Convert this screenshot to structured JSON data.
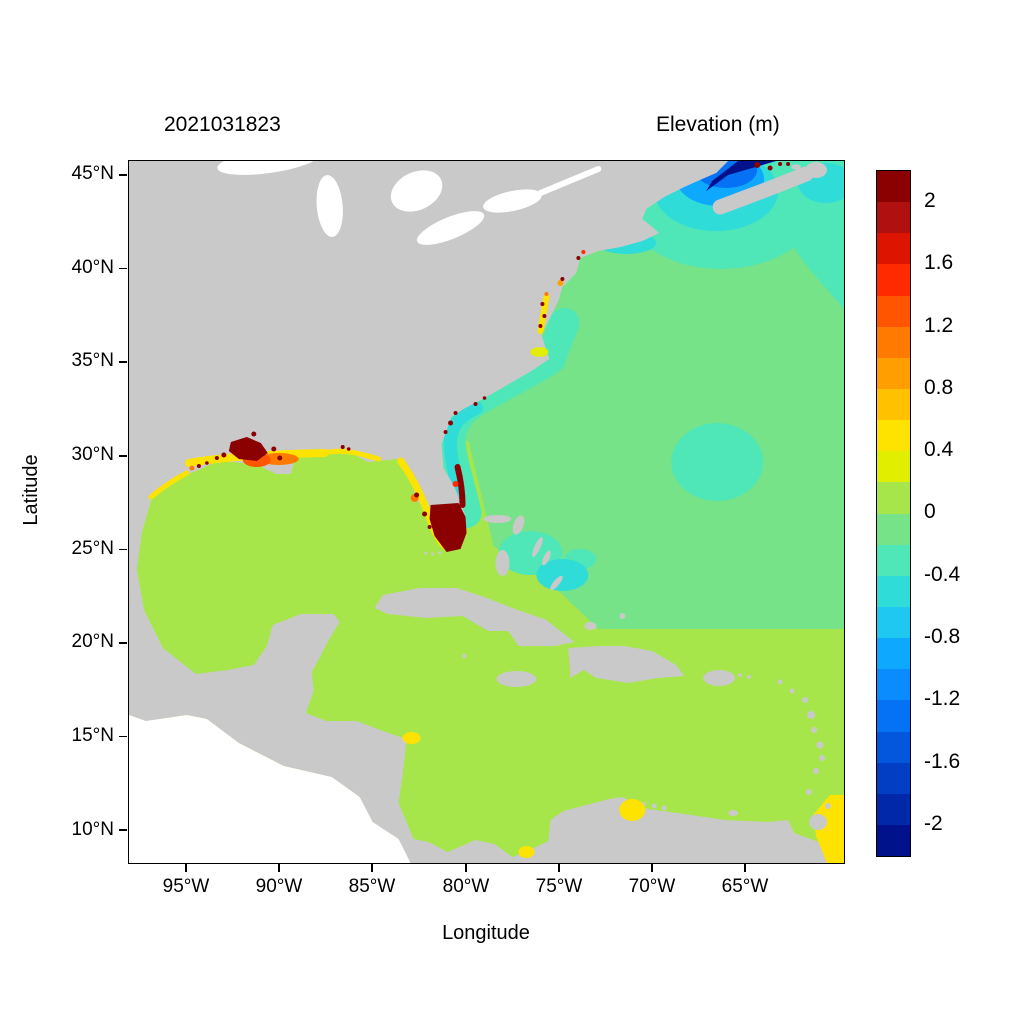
{
  "figure": {
    "left_title": "2021031823",
    "right_title": "Elevation (m)",
    "xlabel": "Longitude",
    "ylabel": "Latitude"
  },
  "axes": {
    "x_ticks": [
      "95°W",
      "90°W",
      "85°W",
      "80°W",
      "75°W",
      "70°W",
      "65°W"
    ],
    "y_ticks": [
      "45°N",
      "40°N",
      "35°N",
      "30°N",
      "25°N",
      "20°N",
      "15°N",
      "10°N"
    ]
  },
  "colorbar": {
    "tick_labels": [
      "2",
      "1.6",
      "1.2",
      "0.8",
      "0.4",
      "0",
      "-0.4",
      "-0.8",
      "-1.2",
      "-1.6",
      "-2"
    ],
    "bands": [
      {
        "range": [
          2.0,
          2.2
        ],
        "color": "#8B0000"
      },
      {
        "range": [
          1.8,
          2.0
        ],
        "color": "#B01010"
      },
      {
        "range": [
          1.6,
          1.8
        ],
        "color": "#DC1400"
      },
      {
        "range": [
          1.4,
          1.6
        ],
        "color": "#FF2A00"
      },
      {
        "range": [
          1.2,
          1.4
        ],
        "color": "#FF5500"
      },
      {
        "range": [
          1.0,
          1.2
        ],
        "color": "#FF7A00"
      },
      {
        "range": [
          0.8,
          1.0
        ],
        "color": "#FF9E00"
      },
      {
        "range": [
          0.6,
          0.8
        ],
        "color": "#FFC100"
      },
      {
        "range": [
          0.4,
          0.6
        ],
        "color": "#FFE300"
      },
      {
        "range": [
          0.2,
          0.4
        ],
        "color": "#E2EE00"
      },
      {
        "range": [
          0.0,
          0.2
        ],
        "color": "#A6E64B"
      },
      {
        "range": [
          -0.2,
          0.0
        ],
        "color": "#76E388"
      },
      {
        "range": [
          -0.4,
          -0.2
        ],
        "color": "#4FE6B8"
      },
      {
        "range": [
          -0.6,
          -0.4
        ],
        "color": "#2FDCD8"
      },
      {
        "range": [
          -0.8,
          -0.6
        ],
        "color": "#1EC8F0"
      },
      {
        "range": [
          -1.0,
          -0.8
        ],
        "color": "#0FA8FF"
      },
      {
        "range": [
          -1.2,
          -1.0
        ],
        "color": "#0A8CFF"
      },
      {
        "range": [
          -1.4,
          -1.2
        ],
        "color": "#0571F5"
      },
      {
        "range": [
          -1.6,
          -1.4
        ],
        "color": "#0357DC"
      },
      {
        "range": [
          -1.8,
          -1.6
        ],
        "color": "#023EC3"
      },
      {
        "range": [
          -2.0,
          -1.8
        ],
        "color": "#0128A8"
      },
      {
        "range": [
          -2.2,
          -2.0
        ],
        "color": "#00128B"
      }
    ]
  },
  "map": {
    "colors": {
      "land": "#C9C9C9",
      "no_data": "#FFFFFF",
      "lake": "#FFFFFF"
    }
  },
  "chart_data": {
    "type": "heatmap",
    "subtype": "geographic contour map of modeled water-surface elevation",
    "title": "2021031823",
    "colorbar_label": "Elevation (m)",
    "xlabel": "Longitude",
    "ylabel": "Latitude",
    "x_tick_values_deg_west": [
      95,
      90,
      85,
      80,
      75,
      70,
      65
    ],
    "y_tick_values_deg_north": [
      45,
      40,
      35,
      30,
      25,
      20,
      15,
      10
    ],
    "x_range_deg_west": [
      98,
      60
    ],
    "y_range_deg_north": [
      8,
      46
    ],
    "color_scale": {
      "min_m": -2.2,
      "max_m": 2.2,
      "band_step_m": 0.2,
      "legend_position": "right"
    },
    "grid": false,
    "regions": [
      {
        "name": "Gulf of Mexico open water",
        "elevation_m": 0.1
      },
      {
        "name": "Caribbean Sea open water",
        "elevation_m": 0.1
      },
      {
        "name": "Open North Atlantic",
        "elevation_m": -0.1
      },
      {
        "name": "Southeast US shelf band (Florida to Cape Hatteras)",
        "elevation_m": -0.3
      },
      {
        "name": "Bahamas banks patches",
        "elevation_m": -0.5
      },
      {
        "name": "Offshore circular patch near 66W 29N",
        "elevation_m": -0.3
      },
      {
        "name": "Gulf of Maine / Scotian Shelf",
        "elevation_m": -0.6
      },
      {
        "name": "Bay of Fundy head (dark blue minimum)",
        "elevation_m": -2.1
      },
      {
        "name": "Minas Basin specks at top edge",
        "elevation_m": 2.1
      },
      {
        "name": "Louisiana coastal marsh cluster",
        "elevation_m": 2.1
      },
      {
        "name": "Mississippi delta fringe",
        "elevation_m": 1.3
      },
      {
        "name": "Northern Gulf coast yellow strip (TX-AL)",
        "elevation_m": 0.5
      },
      {
        "name": "West Florida coastal yellow strip",
        "elevation_m": 0.5
      },
      {
        "name": "Tampa Bay / Charlotte Harbor specks",
        "elevation_m": 2.1
      },
      {
        "name": "South Florida / Everglades dark-red area",
        "elevation_m": 2.1
      },
      {
        "name": "Florida east coast lagoon streak",
        "elevation_m": 2.1
      },
      {
        "name": "Chesapeake and Delaware bay specks",
        "elevation_m": 1.5
      },
      {
        "name": "Georgia / Carolinas estuary specks",
        "elevation_m": 2.1
      },
      {
        "name": "Lake Maracaibo / Gulf of Venezuela patch",
        "elevation_m": 0.5
      },
      {
        "name": "Orinoco delta / Trinidad right-edge strip",
        "elevation_m": 0.5
      },
      {
        "name": "Cabo Gracias a Dios shelf patch",
        "elevation_m": 0.5
      },
      {
        "name": "Gulf of Uraba patch",
        "elevation_m": 0.5
      },
      {
        "name": "Land (gray)",
        "elevation_m": null
      },
      {
        "name": "Pacific Ocean (white, outside model domain)",
        "elevation_m": null
      }
    ]
  }
}
